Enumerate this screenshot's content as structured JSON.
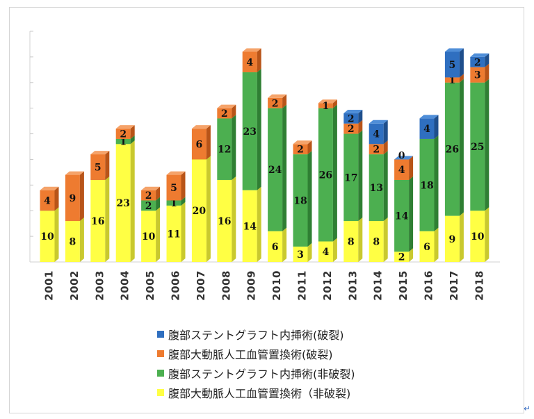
{
  "chart_data": {
    "type": "bar",
    "stacked": true,
    "categories": [
      "2001",
      "2002",
      "2003",
      "2004",
      "2005",
      "2006",
      "2007",
      "2008",
      "2009",
      "2010",
      "2011",
      "2012",
      "2013",
      "2014",
      "2015",
      "2016",
      "2017",
      "2018"
    ],
    "series": [
      {
        "name": "腹部大動脈人工血管置換術（非破裂)",
        "color": "#ffff44",
        "top": "#ffff88",
        "side": "#c9c92e",
        "values": [
          10,
          8,
          16,
          23,
          10,
          11,
          20,
          16,
          14,
          6,
          3,
          4,
          8,
          8,
          2,
          6,
          9,
          10
        ]
      },
      {
        "name": "腹部ステントグラフト内挿術(非破裂)",
        "color": "#4caf50",
        "top": "#6fcf73",
        "side": "#2f7f33",
        "values": [
          0,
          0,
          0,
          1,
          2,
          1,
          0,
          12,
          23,
          24,
          18,
          26,
          17,
          13,
          14,
          18,
          26,
          25
        ]
      },
      {
        "name": "腹部大動脈人工血管置換術(破裂)",
        "color": "#ee7b30",
        "top": "#f5a36a",
        "side": "#b85418",
        "values": [
          4,
          9,
          5,
          2,
          2,
          5,
          6,
          2,
          4,
          2,
          2,
          1,
          2,
          2,
          4,
          0,
          1,
          3
        ]
      },
      {
        "name": "腹部ステントグラフト内挿術(破裂)",
        "color": "#2f6fc0",
        "top": "#4f8ed8",
        "side": "#1f4f8c",
        "values": [
          0,
          0,
          0,
          0,
          0,
          0,
          0,
          0,
          0,
          0,
          0,
          0,
          2,
          4,
          0,
          4,
          5,
          2
        ]
      }
    ],
    "value_labels": [
      [
        [
          "10",
          "0",
          "4"
        ]
      ],
      [
        [
          "8",
          "0",
          "9"
        ]
      ],
      [
        [
          "16",
          "0",
          "5"
        ]
      ],
      [
        [
          "23",
          "1",
          "2"
        ]
      ],
      [
        [
          "10",
          "2",
          "2"
        ]
      ],
      [
        [
          "11",
          "1",
          "5"
        ]
      ],
      [
        [
          "20",
          "0",
          "6"
        ]
      ],
      [
        [
          "16",
          "12",
          "2"
        ]
      ],
      [
        [
          "14",
          "23",
          "4"
        ]
      ],
      [
        [
          "6",
          "24",
          "2"
        ]
      ],
      [
        [
          "3",
          "18",
          "2"
        ]
      ],
      [
        [
          "4",
          "26",
          "1"
        ]
      ],
      [
        [
          "8",
          "17",
          "2",
          "2"
        ]
      ],
      [
        [
          "8",
          "13",
          "2",
          "4"
        ]
      ],
      [
        [
          "2",
          "14",
          "4",
          "0"
        ]
      ],
      [
        [
          "6",
          "18",
          "0",
          "4"
        ]
      ],
      [
        [
          "9",
          "26",
          "1",
          "5"
        ]
      ],
      [
        [
          "10",
          "25",
          "3",
          "2"
        ]
      ]
    ],
    "ylim": [
      0,
      45
    ],
    "legend_order": [
      "腹部ステントグラフト内挿術(破裂)",
      "腹部大動脈人工血管置換術(破裂)",
      "腹部ステントグラフト内挿術(非破裂)",
      "腹部大動脈人工血管置換術（非破裂)"
    ],
    "legend_colors": [
      "#2f6fc0",
      "#ee7b30",
      "#4caf50",
      "#ffff44"
    ],
    "legend_position": "bottom"
  },
  "enter_mark": "↵"
}
